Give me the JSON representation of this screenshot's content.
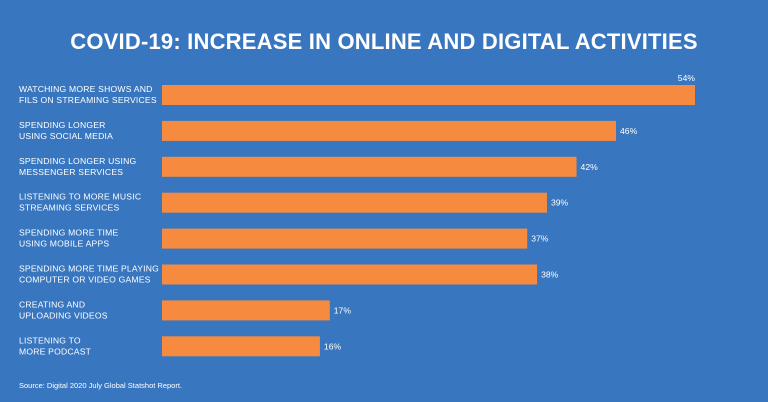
{
  "chart_data": {
    "type": "bar",
    "orientation": "horizontal",
    "title": "COVID-19: INCREASE IN ONLINE AND DIGITAL ACTIVITIES",
    "categories": [
      [
        "WATCHING MORE SHOWS AND",
        "FILS ON STREAMING SERVICES"
      ],
      [
        "SPENDING LONGER",
        "USING SOCIAL MEDIA"
      ],
      [
        "SPENDING LONGER USING",
        "MESSENGER SERVICES"
      ],
      [
        "LISTENING TO MORE MUSIC",
        "STREAMING SERVICES"
      ],
      [
        "SPENDING MORE TIME",
        "USING MOBILE APPS"
      ],
      [
        "SPENDING MORE TIME PLAYING",
        "COMPUTER OR VIDEO GAMES"
      ],
      [
        "CREATING AND",
        "UPLOADING VIDEOS"
      ],
      [
        "LISTENING TO",
        "MORE PODCAST"
      ]
    ],
    "values": [
      54,
      46,
      42,
      39,
      37,
      38,
      17,
      16
    ],
    "value_labels": [
      "54%",
      "46%",
      "42%",
      "39%",
      "37%",
      "38%",
      "17%",
      "16%"
    ],
    "unit": "%",
    "xlim": [
      0,
      54
    ],
    "grid": false,
    "legend": "none",
    "colors": {
      "background": "#3876bf",
      "bar": "#f68b40",
      "text": "#ffffff"
    }
  },
  "footer": {
    "source": "Source: Digital 2020 July Global Statshot Report."
  }
}
